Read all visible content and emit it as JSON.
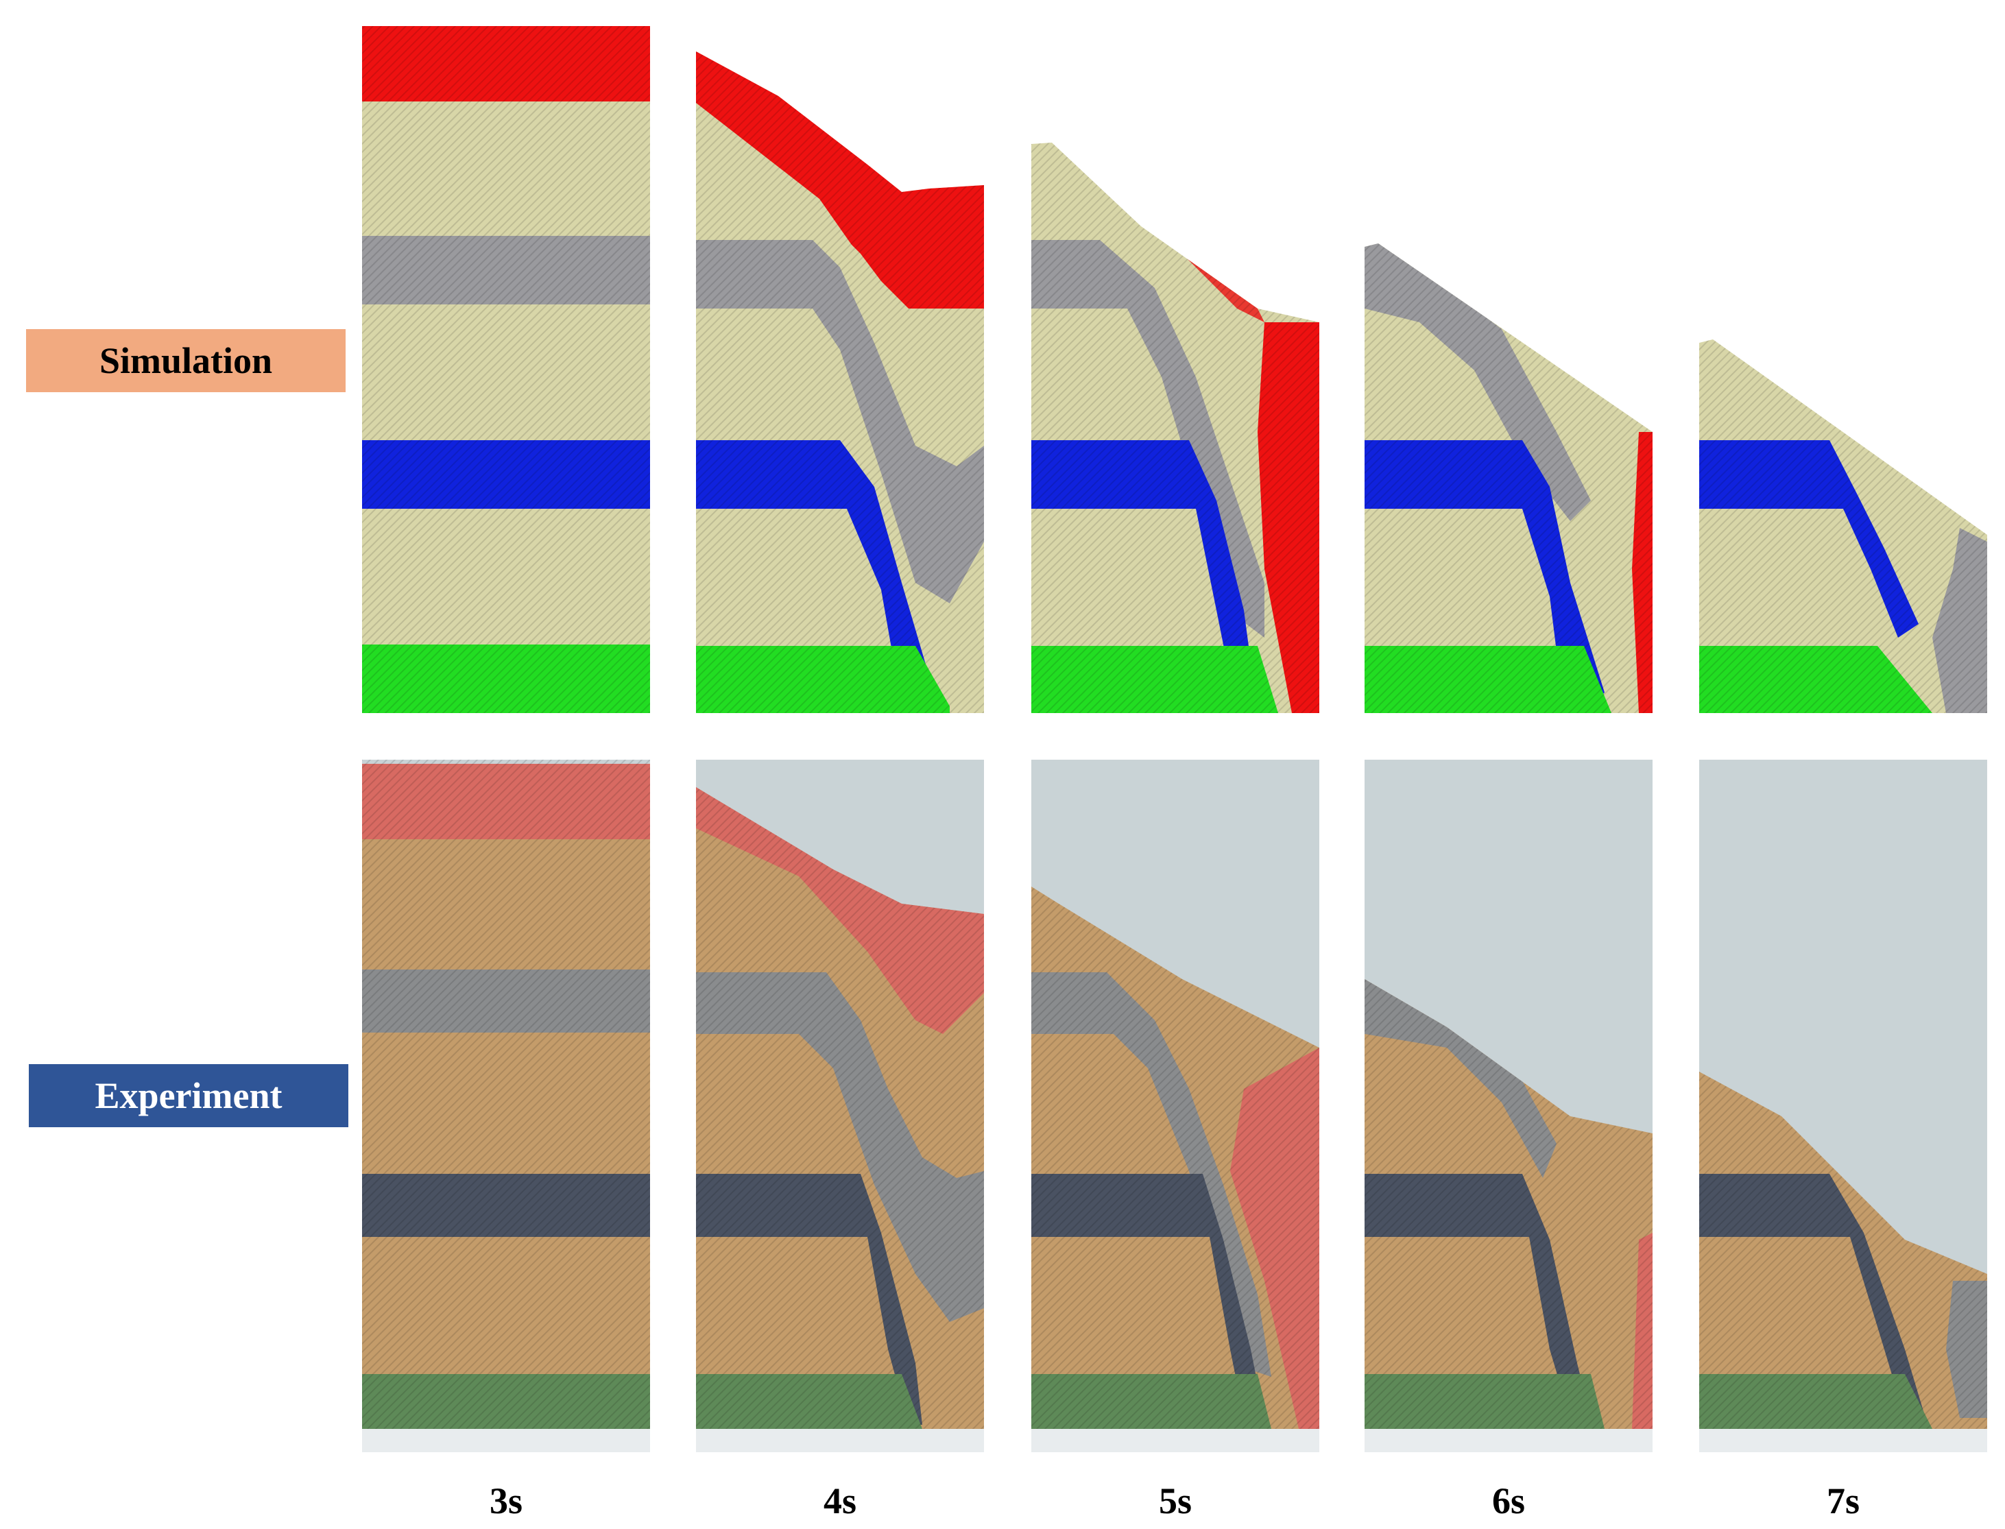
{
  "row_labels": {
    "simulation": "Simulation",
    "experiment": "Experiment"
  },
  "time_labels": [
    "3s",
    "4s",
    "5s",
    "6s",
    "7s"
  ],
  "colors": {
    "sim_red": "#ee1111",
    "sim_beige": "#d8d6a8",
    "sim_gray": "#9a9a9e",
    "sim_blue": "#1022dd",
    "sim_green": "#22dd22",
    "exp_red": "#d86a62",
    "exp_tan": "#c49c6a",
    "exp_gray": "#8a8c8e",
    "exp_dark": "#4a5262",
    "exp_green": "#5e8a58",
    "exp_bg": "#c9d3d6",
    "sim_label_bg": "#f2aa80",
    "exp_label_bg": "#2f5597"
  }
}
